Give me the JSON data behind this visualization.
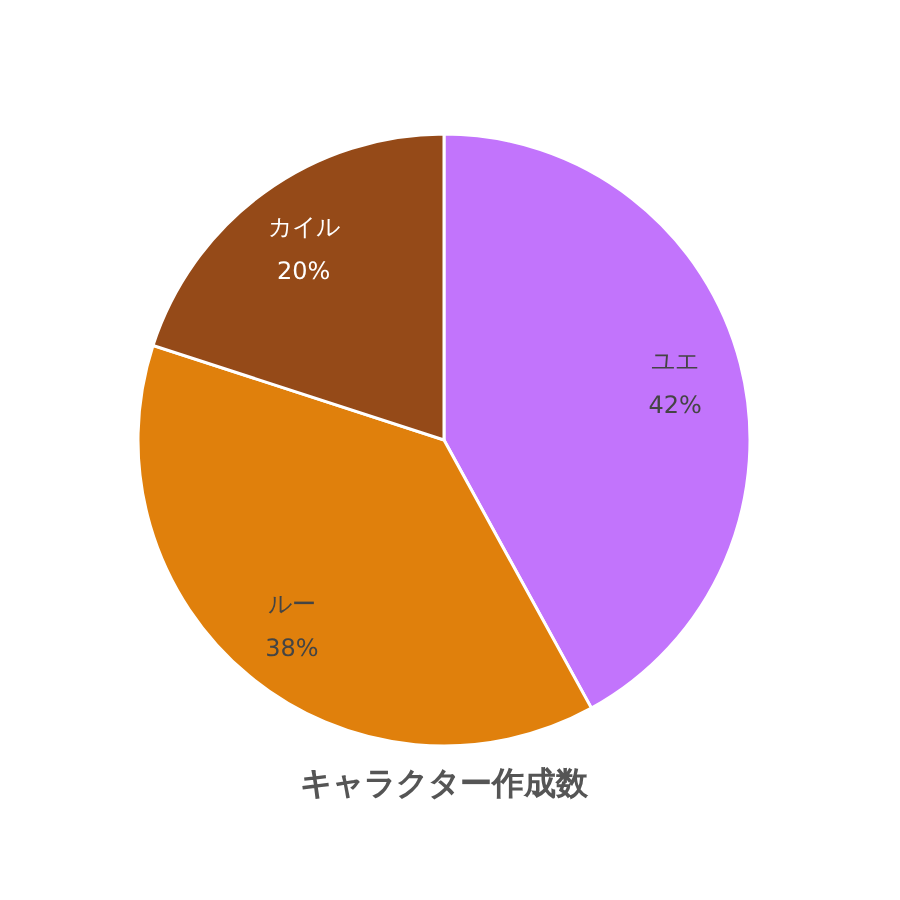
{
  "chart_data": {
    "type": "pie",
    "title": "キャラクター作成数",
    "categories": [
      "ユエ",
      "ルー",
      "カイル"
    ],
    "values": [
      42,
      38,
      20
    ],
    "colors": [
      "#c274fc",
      "#e0800c",
      "#954a18"
    ],
    "value_labels": [
      "42%",
      "38%",
      "20%"
    ],
    "legend": false
  }
}
